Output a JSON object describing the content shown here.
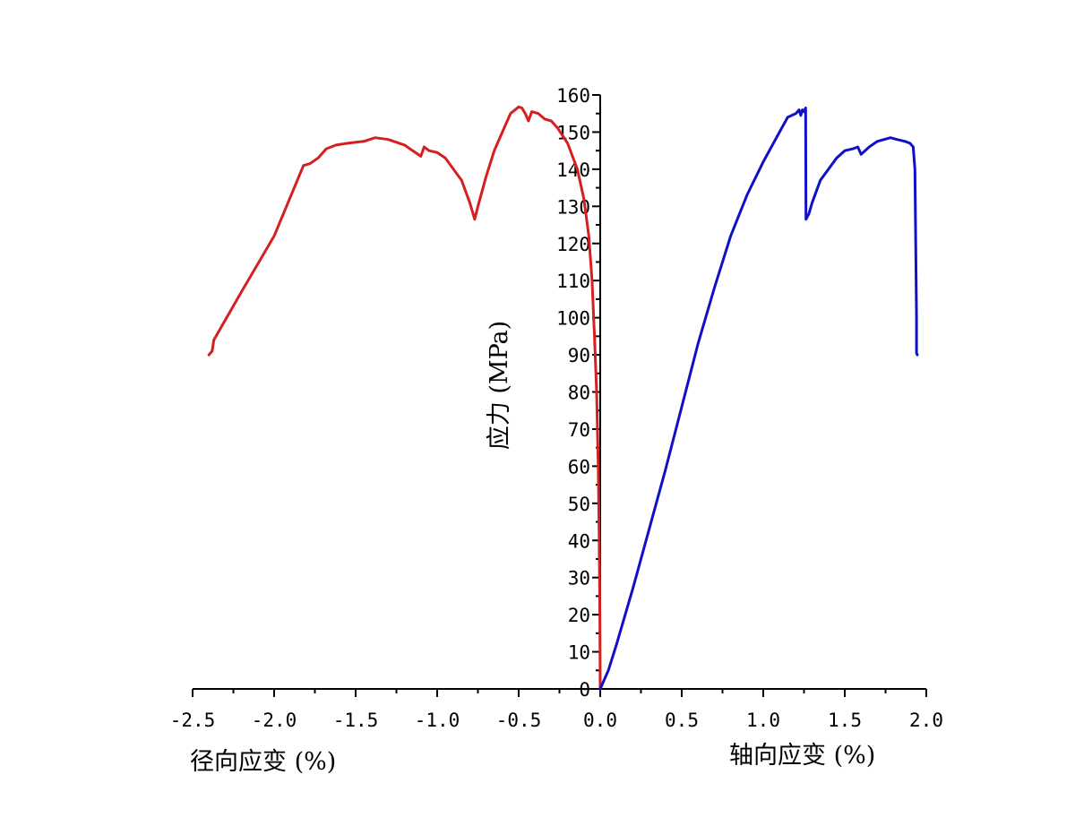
{
  "chart_data": {
    "type": "line",
    "title": "",
    "ylabel": "应力 (MPa)",
    "xlabel_left": "径向应变 (%)",
    "xlabel_right": "轴向应变 (%)",
    "xlim": [
      -2.5,
      2.0
    ],
    "ylim": [
      0,
      160
    ],
    "x_ticks": [
      -2.5,
      -2.0,
      -1.5,
      -1.0,
      -0.5,
      0.0,
      0.5,
      1.0,
      1.5,
      2.0
    ],
    "x_tick_labels": [
      "-2.5",
      "-2.0",
      "-1.5",
      "-1.0",
      "-0.5",
      "0.0",
      "0.5",
      "1.0",
      "1.5",
      "2.0"
    ],
    "y_ticks": [
      0,
      10,
      20,
      30,
      40,
      50,
      60,
      70,
      80,
      90,
      100,
      110,
      120,
      130,
      140,
      150,
      160
    ],
    "y_tick_labels": [
      "0",
      "10",
      "20",
      "30",
      "40",
      "50",
      "60",
      "70",
      "80",
      "90",
      "100",
      "110",
      "120",
      "130",
      "140",
      "150",
      "160"
    ],
    "grid": false,
    "series": [
      {
        "color": "#d42020",
        "points": [
          [
            0.0,
            0
          ],
          [
            -0.002,
            20
          ],
          [
            -0.006,
            40
          ],
          [
            -0.012,
            60
          ],
          [
            -0.022,
            80
          ],
          [
            -0.035,
            95
          ],
          [
            -0.05,
            110
          ],
          [
            -0.07,
            122
          ],
          [
            -0.1,
            132
          ],
          [
            -0.14,
            140
          ],
          [
            -0.2,
            147
          ],
          [
            -0.26,
            151
          ],
          [
            -0.3,
            153
          ],
          [
            -0.34,
            153.5
          ],
          [
            -0.38,
            155
          ],
          [
            -0.42,
            155.5
          ],
          [
            -0.44,
            153
          ],
          [
            -0.46,
            155
          ],
          [
            -0.48,
            156.5
          ],
          [
            -0.5,
            156.8
          ],
          [
            -0.55,
            155
          ],
          [
            -0.6,
            150
          ],
          [
            -0.65,
            145
          ],
          [
            -0.7,
            138
          ],
          [
            -0.75,
            130
          ],
          [
            -0.77,
            126.5
          ],
          [
            -0.8,
            131
          ],
          [
            -0.85,
            137
          ],
          [
            -0.9,
            140
          ],
          [
            -0.95,
            143
          ],
          [
            -1.0,
            144.5
          ],
          [
            -1.05,
            145
          ],
          [
            -1.08,
            146
          ],
          [
            -1.1,
            143.5
          ],
          [
            -1.15,
            145
          ],
          [
            -1.2,
            146.5
          ],
          [
            -1.3,
            148
          ],
          [
            -1.38,
            148.5
          ],
          [
            -1.45,
            147.5
          ],
          [
            -1.55,
            147
          ],
          [
            -1.62,
            146.5
          ],
          [
            -1.68,
            145.5
          ],
          [
            -1.73,
            143
          ],
          [
            -1.78,
            141.5
          ],
          [
            -1.82,
            141
          ],
          [
            -2.0,
            122
          ],
          [
            -2.2,
            107
          ],
          [
            -2.37,
            94
          ],
          [
            -2.38,
            91
          ],
          [
            -2.4,
            90
          ]
        ]
      },
      {
        "color": "#1010c8",
        "points": [
          [
            0.0,
            0
          ],
          [
            0.01,
            1
          ],
          [
            0.05,
            5
          ],
          [
            0.1,
            12
          ],
          [
            0.2,
            27
          ],
          [
            0.3,
            43
          ],
          [
            0.4,
            59
          ],
          [
            0.5,
            76
          ],
          [
            0.6,
            93
          ],
          [
            0.7,
            108
          ],
          [
            0.8,
            122
          ],
          [
            0.9,
            133
          ],
          [
            1.0,
            142
          ],
          [
            1.1,
            150
          ],
          [
            1.15,
            154
          ],
          [
            1.2,
            155
          ],
          [
            1.22,
            156
          ],
          [
            1.23,
            154.5
          ],
          [
            1.24,
            156
          ],
          [
            1.25,
            155.5
          ],
          [
            1.26,
            156.5
          ],
          [
            1.262,
            126.5
          ],
          [
            1.28,
            128
          ],
          [
            1.3,
            131
          ],
          [
            1.35,
            137
          ],
          [
            1.4,
            140
          ],
          [
            1.45,
            143
          ],
          [
            1.5,
            145
          ],
          [
            1.55,
            145.5
          ],
          [
            1.58,
            146
          ],
          [
            1.6,
            144
          ],
          [
            1.65,
            146
          ],
          [
            1.7,
            147.5
          ],
          [
            1.78,
            148.5
          ],
          [
            1.82,
            148
          ],
          [
            1.87,
            147.5
          ],
          [
            1.9,
            147
          ],
          [
            1.92,
            146
          ],
          [
            1.93,
            140
          ],
          [
            1.935,
            120
          ],
          [
            1.94,
            100
          ],
          [
            1.94,
            90.5
          ],
          [
            1.945,
            90
          ]
        ]
      }
    ]
  }
}
